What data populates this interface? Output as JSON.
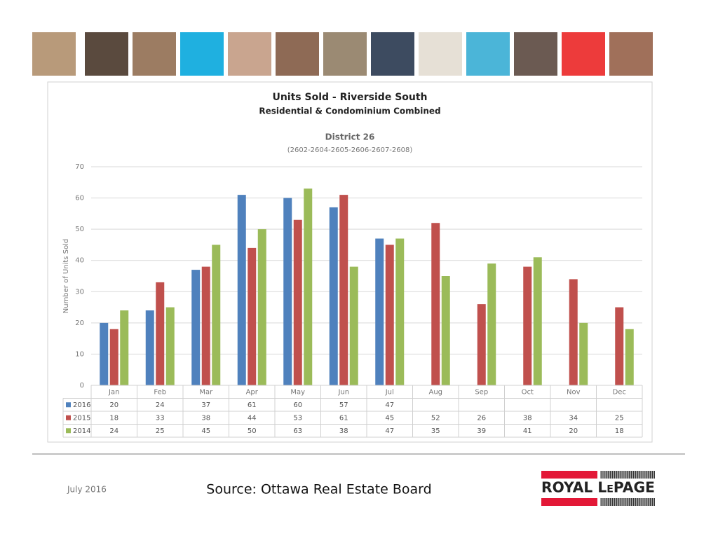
{
  "chart_data": {
    "type": "bar",
    "title": "Units Sold - Riverside South",
    "subtitle": "Residential & Condominium Combined",
    "district": "District 26",
    "district_codes": "(2602-2604-2605-2606-2607-2608)",
    "y_label": "Number of Units Sold",
    "categories": [
      "Jan",
      "Feb",
      "Mar",
      "Apr",
      "May",
      "Jun",
      "Jul",
      "Aug",
      "Sep",
      "Oct",
      "Nov",
      "Dec"
    ],
    "series": [
      {
        "name": "2016",
        "color": "#4f81bd",
        "values": [
          20,
          24,
          37,
          61,
          60,
          57,
          47,
          null,
          null,
          null,
          null,
          null
        ]
      },
      {
        "name": "2015",
        "color": "#c0504d",
        "values": [
          18,
          33,
          38,
          44,
          53,
          61,
          45,
          52,
          26,
          38,
          34,
          25
        ]
      },
      {
        "name": "2014",
        "color": "#9bbb59",
        "values": [
          24,
          25,
          45,
          50,
          63,
          38,
          47,
          35,
          39,
          41,
          20,
          18
        ]
      }
    ],
    "ylim": [
      0,
      70
    ],
    "yticks": [
      0,
      10,
      20,
      30,
      40,
      50,
      60,
      70
    ],
    "grid": true
  },
  "footer": {
    "date": "July 2016",
    "source": "Source: Ottawa Real Estate Board",
    "logo": "ROYAL LePAGE"
  }
}
